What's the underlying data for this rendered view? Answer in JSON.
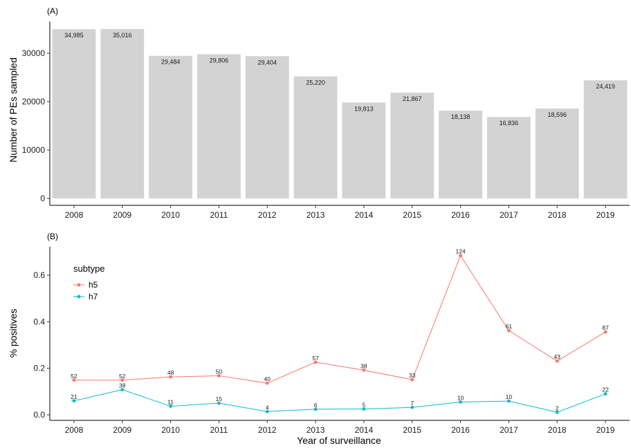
{
  "chart_data": [
    {
      "type": "bar",
      "panel_label": "(A)",
      "categories": [
        "2008",
        "2009",
        "2010",
        "2011",
        "2012",
        "2013",
        "2014",
        "2015",
        "2016",
        "2017",
        "2018",
        "2019"
      ],
      "values": [
        34985,
        35016,
        29484,
        29806,
        29404,
        25220,
        19813,
        21867,
        18138,
        16836,
        18596,
        24419
      ],
      "data_labels": [
        "34,985",
        "35,016",
        "29,484",
        "29,806",
        "29,404",
        "25,220",
        "19,813",
        "21,867",
        "18,138",
        "16,836",
        "18,596",
        "24,419"
      ],
      "ylabel": "Number of PEs sampled",
      "xlabel": "",
      "ylim": [
        0,
        36500
      ],
      "yticks": [
        0,
        10000,
        20000,
        30000
      ],
      "bar_color": "#d3d3d3",
      "grid": false
    },
    {
      "type": "line",
      "panel_label": "(B)",
      "x": [
        "2008",
        "2009",
        "2010",
        "2011",
        "2012",
        "2013",
        "2014",
        "2015",
        "2016",
        "2017",
        "2018",
        "2019"
      ],
      "xlabel": "Year of surveillance",
      "ylabel": "% positives",
      "ylim": [
        0,
        0.72
      ],
      "yticks": [
        0.0,
        0.2,
        0.4,
        0.6
      ],
      "ytick_labels": [
        "0.0",
        "0.2",
        "0.4",
        "0.6"
      ],
      "grid": false,
      "legend": {
        "title": "subtype",
        "position": "top-left"
      },
      "series": [
        {
          "name": "h5",
          "color": "#f8766d",
          "values": [
            0.149,
            0.149,
            0.163,
            0.168,
            0.136,
            0.226,
            0.192,
            0.151,
            0.684,
            0.362,
            0.231,
            0.356
          ],
          "labels": [
            "52",
            "52",
            "48",
            "50",
            "40",
            "57",
            "38",
            "33",
            "124",
            "61",
            "43",
            "87"
          ]
        },
        {
          "name": "h7",
          "color": "#00bfc4",
          "values": [
            0.06,
            0.108,
            0.037,
            0.05,
            0.014,
            0.024,
            0.025,
            0.032,
            0.055,
            0.059,
            0.011,
            0.09
          ],
          "labels": [
            "21",
            "38",
            "11",
            "15",
            "4",
            "6",
            "5",
            "7",
            "10",
            "10",
            "2",
            "22"
          ]
        }
      ]
    }
  ]
}
